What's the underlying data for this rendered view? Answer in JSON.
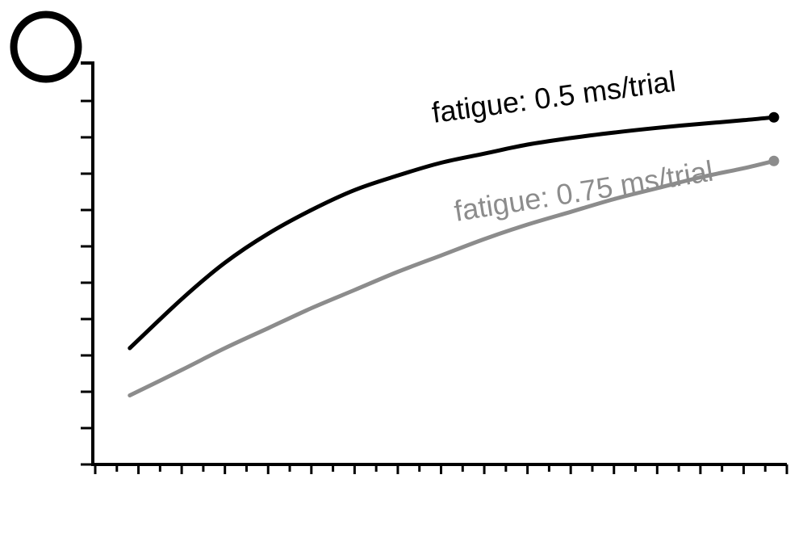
{
  "chart_data": {
    "type": "line",
    "title": "",
    "xlabel": "",
    "ylabel": "",
    "grid": false,
    "legend": "none",
    "xlim": [
      0,
      16
    ],
    "ylim": [
      0,
      10
    ],
    "x_ticks_major": 16,
    "x_ticks_minor_per_major": 2,
    "y_ticks": 10,
    "series": [
      {
        "name": "fatigue: 0.5 ms/trial",
        "color": "#000000",
        "x": [
          0.8,
          2,
          3,
          4,
          5,
          6,
          7,
          8,
          9,
          10,
          11,
          12,
          13,
          14,
          15,
          15.7
        ],
        "y": [
          3.2,
          4.55,
          5.55,
          6.35,
          7.0,
          7.55,
          7.95,
          8.3,
          8.55,
          8.8,
          8.98,
          9.13,
          9.26,
          9.37,
          9.47,
          9.55
        ],
        "endpoint_marker": true
      },
      {
        "name": "fatigue: 0.75 ms/trial",
        "color": "#8c8c8c",
        "x": [
          0.8,
          2,
          3,
          4,
          5,
          6,
          7,
          8,
          9,
          10,
          11,
          12,
          13,
          14,
          15,
          15.7
        ],
        "y": [
          1.9,
          2.6,
          3.2,
          3.75,
          4.3,
          4.8,
          5.3,
          5.75,
          6.2,
          6.6,
          6.95,
          7.3,
          7.6,
          7.9,
          8.15,
          8.35
        ],
        "endpoint_marker": true
      }
    ]
  }
}
